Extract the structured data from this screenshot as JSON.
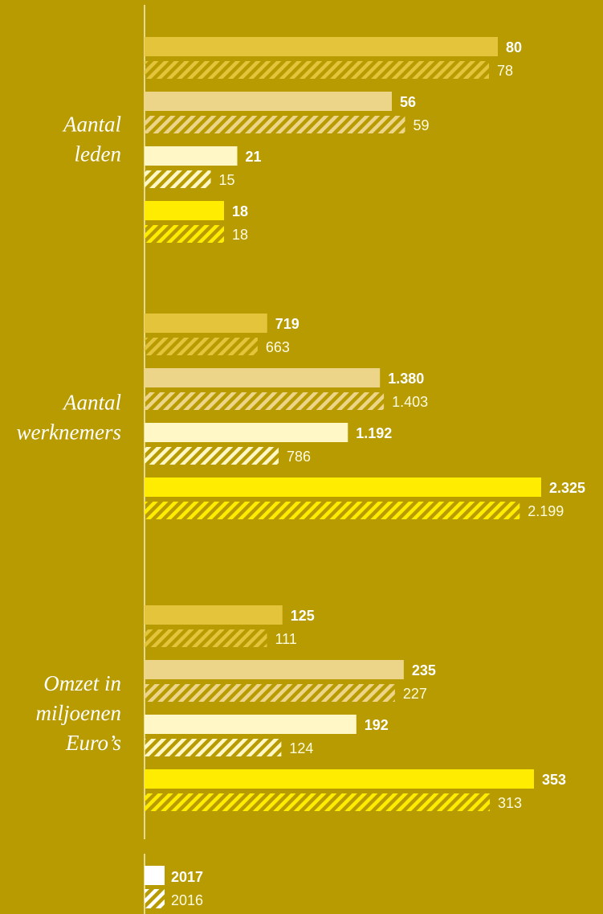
{
  "chart_data": {
    "type": "bar",
    "orientation": "horizontal",
    "groups": [
      {
        "label_lines": [
          "Aantal",
          "leden"
        ],
        "rows": [
          {
            "color": "#e3c43a",
            "v2017": 80,
            "v2016": 78,
            "l2017": "80",
            "l2016": "78"
          },
          {
            "color": "#ecd588",
            "v2017": 56,
            "v2016": 59,
            "l2017": "56",
            "l2016": "59"
          },
          {
            "color": "#fff7c6",
            "v2017": 21,
            "v2016": 15,
            "l2017": "21",
            "l2016": "15"
          },
          {
            "color": "#ffec00",
            "v2017": 18,
            "v2016": 18,
            "l2017": "18",
            "l2016": "18"
          }
        ]
      },
      {
        "label_lines": [
          "Aantal",
          "werknemers"
        ],
        "rows": [
          {
            "color": "#e3c43a",
            "v2017": 719,
            "v2016": 663,
            "l2017": "719",
            "l2016": "663"
          },
          {
            "color": "#ecd588",
            "v2017": 1380,
            "v2016": 1403,
            "l2017": "1.380",
            "l2016": "1.403"
          },
          {
            "color": "#fff7c6",
            "v2017": 1192,
            "v2016": 786,
            "l2017": "1.192",
            "l2016": "786"
          },
          {
            "color": "#ffec00",
            "v2017": 2325,
            "v2016": 2199,
            "l2017": "2.325",
            "l2016": "2.199"
          }
        ]
      },
      {
        "label_lines": [
          "Omzet in",
          "miljoenen",
          "Euro’s"
        ],
        "rows": [
          {
            "color": "#e3c43a",
            "v2017": 125,
            "v2016": 111,
            "l2017": "125",
            "l2016": "111"
          },
          {
            "color": "#ecd588",
            "v2017": 235,
            "v2016": 227,
            "l2017": "235",
            "l2016": "227"
          },
          {
            "color": "#fff7c6",
            "v2017": 192,
            "v2016": 124,
            "l2017": "192",
            "l2016": "124"
          },
          {
            "color": "#ffec00",
            "v2017": 353,
            "v2016": 313,
            "l2017": "353",
            "l2016": "313"
          }
        ]
      }
    ],
    "legend": [
      {
        "label": "2017",
        "style": "solid"
      },
      {
        "label": "2016",
        "style": "hatched"
      }
    ]
  },
  "colors": {
    "background": "#b89b00",
    "axis": "#f5eec0",
    "legend_fill": "#ffffff"
  }
}
